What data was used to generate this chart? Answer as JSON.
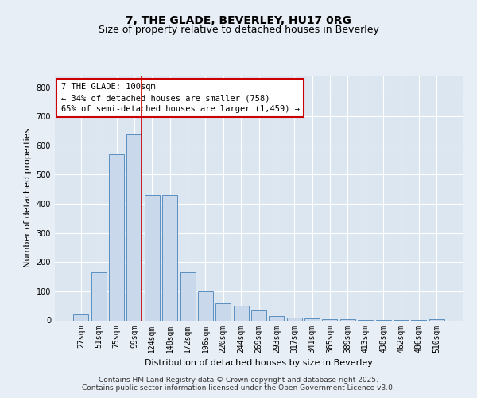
{
  "title": "7, THE GLADE, BEVERLEY, HU17 0RG",
  "subtitle": "Size of property relative to detached houses in Beverley",
  "xlabel": "Distribution of detached houses by size in Beverley",
  "ylabel": "Number of detached properties",
  "categories": [
    "27sqm",
    "51sqm",
    "75sqm",
    "99sqm",
    "124sqm",
    "148sqm",
    "172sqm",
    "196sqm",
    "220sqm",
    "244sqm",
    "269sqm",
    "293sqm",
    "317sqm",
    "341sqm",
    "365sqm",
    "389sqm",
    "413sqm",
    "438sqm",
    "462sqm",
    "486sqm",
    "510sqm"
  ],
  "values": [
    20,
    165,
    570,
    640,
    430,
    430,
    165,
    100,
    60,
    50,
    35,
    15,
    10,
    8,
    5,
    4,
    2,
    2,
    1,
    1,
    5
  ],
  "bar_color": "#c9d9eb",
  "bar_edge_color": "#5a8fc0",
  "highlight_line_color": "#cc0000",
  "highlight_bar_index": 3,
  "annotation_text": "7 THE GLADE: 100sqm\n← 34% of detached houses are smaller (758)\n65% of semi-detached houses are larger (1,459) →",
  "annotation_box_color": "#ffffff",
  "annotation_box_edge_color": "#cc0000",
  "ylim": [
    0,
    840
  ],
  "yticks": [
    0,
    100,
    200,
    300,
    400,
    500,
    600,
    700,
    800
  ],
  "background_color": "#e8eef5",
  "plot_background_color": "#dce6f0",
  "footer_line1": "Contains HM Land Registry data © Crown copyright and database right 2025.",
  "footer_line2": "Contains public sector information licensed under the Open Government Licence v3.0.",
  "title_fontsize": 10,
  "subtitle_fontsize": 9,
  "axis_label_fontsize": 8,
  "tick_fontsize": 7,
  "annotation_fontsize": 7.5,
  "footer_fontsize": 6.5
}
